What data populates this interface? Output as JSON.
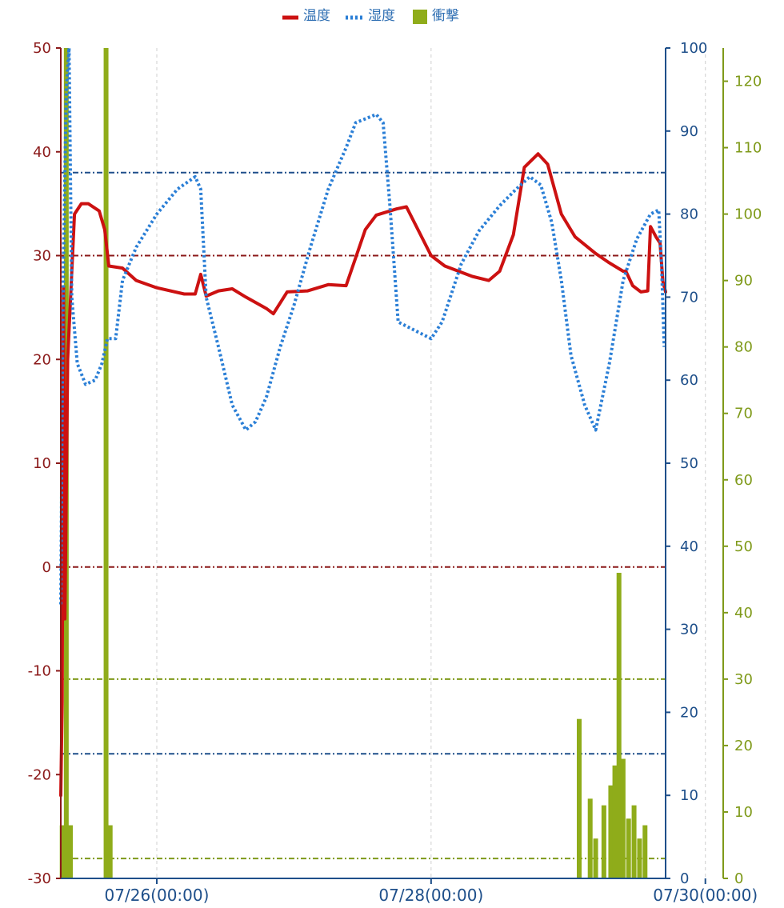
{
  "chart_data": {
    "type": "line",
    "legend": {
      "placement": "top-center",
      "items": [
        {
          "name": "温度",
          "color": "#cc1111",
          "style": "solid-line"
        },
        {
          "name": "湿度",
          "color": "#2b7fd6",
          "style": "dotted-line"
        },
        {
          "name": "衝撃",
          "color": "#8fac1a",
          "style": "bar"
        }
      ]
    },
    "x_axis": {
      "unit": "days since 07/25(00:00)",
      "range": [
        0.3,
        4.71
      ],
      "tick_values": [
        1,
        3,
        5
      ],
      "tick_labels": [
        "07/26(00:00)",
        "07/28(00:00)",
        "07/30(00:00)"
      ],
      "grid": "dashed-vertical"
    },
    "y_axes": [
      {
        "id": "temp",
        "side": "left",
        "color": "#8b1a1a",
        "range": [
          -30,
          50
        ],
        "ticks": [
          -30,
          -20,
          -10,
          0,
          10,
          20,
          30,
          40,
          50
        ],
        "tick_labels": [
          "-30",
          "-20",
          "-10",
          "0",
          "10",
          "20",
          "30",
          "40",
          "50"
        ]
      },
      {
        "id": "humid",
        "side": "right",
        "color": "#1e4f8a",
        "range": [
          0,
          100
        ],
        "ticks": [
          0,
          10,
          20,
          30,
          40,
          50,
          60,
          70,
          80,
          90,
          100
        ],
        "tick_labels": [
          "0",
          "10",
          "20",
          "30",
          "40",
          "50",
          "60",
          "70",
          "80",
          "90",
          "100"
        ]
      },
      {
        "id": "shock",
        "side": "right-outer",
        "color": "#7f9a1a",
        "range": [
          0,
          125
        ],
        "ticks": [
          0,
          10,
          20,
          30,
          40,
          50,
          60,
          70,
          80,
          90,
          100,
          110,
          120
        ],
        "tick_labels": [
          "0",
          "10",
          "20",
          "30",
          "40",
          "50",
          "60",
          "70",
          "80",
          "90",
          "100",
          "110",
          "120"
        ]
      }
    ],
    "threshold_lines": [
      {
        "axis": "temp",
        "value": 30,
        "color": "#8b1a1a"
      },
      {
        "axis": "temp",
        "value": 0,
        "color": "#8b1a1a"
      },
      {
        "axis": "humid",
        "value": 85,
        "color": "#1e4f8a"
      },
      {
        "axis": "humid",
        "value": 15,
        "color": "#1e4f8a"
      },
      {
        "axis": "shock",
        "value": 30,
        "color": "#7f9a1a"
      },
      {
        "axis": "shock",
        "value": 3,
        "color": "#7f9a1a"
      }
    ],
    "series": [
      {
        "name": "温度",
        "axis": "temp",
        "type": "line",
        "color": "#cc1111",
        "points": [
          [
            0.3,
            -22
          ],
          [
            0.31,
            -13
          ],
          [
            0.32,
            27
          ],
          [
            0.33,
            -5
          ],
          [
            0.35,
            20
          ],
          [
            0.4,
            34
          ],
          [
            0.45,
            35
          ],
          [
            0.5,
            35
          ],
          [
            0.58,
            34.3
          ],
          [
            0.62,
            32.5
          ],
          [
            0.65,
            29
          ],
          [
            0.75,
            28.8
          ],
          [
            0.85,
            27.6
          ],
          [
            1.0,
            26.9
          ],
          [
            1.2,
            26.3
          ],
          [
            1.28,
            26.3
          ],
          [
            1.32,
            28.2
          ],
          [
            1.36,
            26.1
          ],
          [
            1.45,
            26.6
          ],
          [
            1.55,
            26.8
          ],
          [
            1.65,
            26.0
          ],
          [
            1.8,
            24.9
          ],
          [
            1.85,
            24.4
          ],
          [
            1.95,
            26.5
          ],
          [
            2.1,
            26.6
          ],
          [
            2.25,
            27.2
          ],
          [
            2.38,
            27.1
          ],
          [
            2.52,
            32.5
          ],
          [
            2.6,
            33.9
          ],
          [
            2.75,
            34.5
          ],
          [
            2.82,
            34.7
          ],
          [
            3.0,
            30.0
          ],
          [
            3.1,
            29.0
          ],
          [
            3.3,
            28.0
          ],
          [
            3.42,
            27.6
          ],
          [
            3.5,
            28.5
          ],
          [
            3.6,
            32.0
          ],
          [
            3.68,
            38.5
          ],
          [
            3.78,
            39.8
          ],
          [
            3.85,
            38.8
          ],
          [
            3.95,
            34.0
          ],
          [
            4.05,
            31.8
          ],
          [
            4.2,
            30.2
          ],
          [
            4.3,
            29.3
          ],
          [
            4.4,
            28.5
          ],
          [
            4.42,
            28.5
          ],
          [
            4.47,
            27.1
          ],
          [
            4.53,
            26.5
          ],
          [
            4.58,
            26.6
          ],
          [
            4.6,
            32.8
          ],
          [
            4.64,
            31.8
          ],
          [
            4.67,
            31.2
          ],
          [
            4.69,
            27.5
          ],
          [
            4.71,
            26.5
          ]
        ]
      },
      {
        "name": "湿度",
        "axis": "humid",
        "type": "line",
        "color": "#2b7fd6",
        "points": [
          [
            0.3,
            33
          ],
          [
            0.31,
            57
          ],
          [
            0.32,
            75
          ],
          [
            0.34,
            95
          ],
          [
            0.36,
            100
          ],
          [
            0.38,
            70
          ],
          [
            0.42,
            62
          ],
          [
            0.48,
            59.5
          ],
          [
            0.55,
            60
          ],
          [
            0.6,
            62
          ],
          [
            0.64,
            65
          ],
          [
            0.7,
            65
          ],
          [
            0.75,
            72
          ],
          [
            0.85,
            76
          ],
          [
            1.0,
            80
          ],
          [
            1.15,
            83
          ],
          [
            1.28,
            84.5
          ],
          [
            1.32,
            83
          ],
          [
            1.36,
            70
          ],
          [
            1.45,
            64
          ],
          [
            1.55,
            57
          ],
          [
            1.65,
            54
          ],
          [
            1.72,
            55
          ],
          [
            1.8,
            58
          ],
          [
            1.9,
            64
          ],
          [
            2.0,
            69
          ],
          [
            2.12,
            76
          ],
          [
            2.25,
            83
          ],
          [
            2.38,
            88
          ],
          [
            2.45,
            91
          ],
          [
            2.6,
            92
          ],
          [
            2.65,
            91
          ],
          [
            2.7,
            81
          ],
          [
            2.76,
            67
          ],
          [
            2.88,
            66
          ],
          [
            3.0,
            65
          ],
          [
            3.08,
            67
          ],
          [
            3.22,
            74
          ],
          [
            3.35,
            78
          ],
          [
            3.5,
            81
          ],
          [
            3.62,
            83
          ],
          [
            3.72,
            84.5
          ],
          [
            3.8,
            83.5
          ],
          [
            3.88,
            79
          ],
          [
            3.95,
            72
          ],
          [
            4.02,
            63
          ],
          [
            4.12,
            57
          ],
          [
            4.2,
            54
          ],
          [
            4.3,
            62
          ],
          [
            4.4,
            72
          ],
          [
            4.5,
            77
          ],
          [
            4.6,
            80
          ],
          [
            4.66,
            80.5
          ],
          [
            4.68,
            74
          ],
          [
            4.7,
            64
          ]
        ]
      },
      {
        "name": "衝撃",
        "axis": "shock",
        "type": "bar",
        "color": "#8fac1a",
        "points": [
          [
            0.31,
            8
          ],
          [
            0.34,
            125
          ],
          [
            0.37,
            8
          ],
          [
            0.63,
            125
          ],
          [
            0.66,
            8
          ],
          [
            4.08,
            24
          ],
          [
            4.16,
            12
          ],
          [
            4.2,
            6
          ],
          [
            4.26,
            11
          ],
          [
            4.31,
            14
          ],
          [
            4.34,
            17
          ],
          [
            4.37,
            46
          ],
          [
            4.4,
            18
          ],
          [
            4.44,
            9
          ],
          [
            4.48,
            11
          ],
          [
            4.52,
            6
          ],
          [
            4.56,
            8
          ]
        ]
      }
    ]
  }
}
